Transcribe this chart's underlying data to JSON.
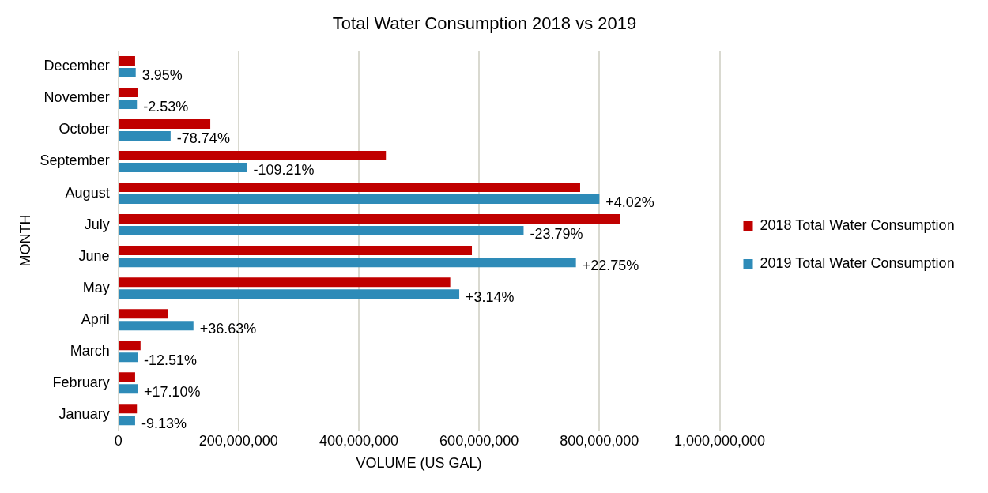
{
  "chart_data": {
    "type": "bar",
    "orientation": "horizontal",
    "title": "Total Water Consumption 2018 vs 2019",
    "xlabel": "VOLUME (US GAL)",
    "ylabel": "MONTH",
    "categories": [
      "December",
      "November",
      "October",
      "September",
      "August",
      "July",
      "June",
      "May",
      "April",
      "March",
      "February",
      "January"
    ],
    "series": [
      {
        "name": "2018 Total Water Consumption",
        "color": "#c00000",
        "values": [
          28000000,
          32000000,
          153000000,
          445000000,
          768000000,
          835000000,
          588000000,
          552000000,
          82000000,
          37000000,
          28000000,
          31000000
        ]
      },
      {
        "name": "2019 Total Water Consumption",
        "color": "#2e8bb8",
        "values": [
          29000000,
          31000000,
          87000000,
          214000000,
          800000000,
          674000000,
          761000000,
          567000000,
          125000000,
          32000000,
          32000000,
          28000000
        ]
      }
    ],
    "xlim": [
      0,
      1000000000
    ],
    "xticks": [
      0,
      {
        "value": 200000000,
        "label": "200,000,000"
      },
      {
        "value": 400000000,
        "label": "400,000,000"
      },
      {
        "value": 600000000,
        "label": "600,000,000"
      },
      {
        "value": 800000000,
        "label": "800,000,000"
      },
      {
        "value": 1000000000,
        "label": "1,000,000,000"
      }
    ],
    "grid": "x",
    "legend": "right",
    "annotations": [
      {
        "text": "3.95%",
        "x": 29000000,
        "y": "December"
      },
      {
        "text": "-2.53%",
        "x": 31000000,
        "y": "November"
      },
      {
        "text": "-78.74%",
        "x": 87000000,
        "y": "October"
      },
      {
        "text": "-109.21%",
        "x": 214000000,
        "y": "September"
      },
      {
        "text": "+4.02%",
        "x": 800000000,
        "y": "August"
      },
      {
        "text": "-23.79%",
        "x": 674000000,
        "y": "July"
      },
      {
        "text": "+22.75%",
        "x": 761000000,
        "y": "June"
      },
      {
        "text": "+3.14%",
        "x": 567000000,
        "y": "May"
      },
      {
        "text": "+36.63%",
        "x": 125000000,
        "y": "April"
      },
      {
        "text": "-12.51%",
        "x": 32000000,
        "y": "March"
      },
      {
        "text": "+17.10%",
        "x": 32000000,
        "y": "February"
      },
      {
        "text": "-9.13%",
        "x": 28000000,
        "y": "January"
      }
    ]
  }
}
